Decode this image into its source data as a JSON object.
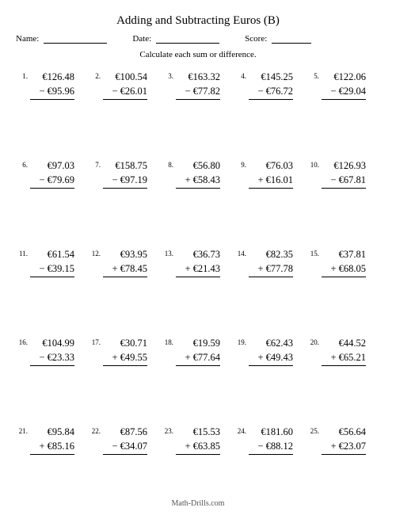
{
  "title": "Adding and Subtracting Euros (B)",
  "labels": {
    "name": "Name:",
    "date": "Date:",
    "score": "Score:"
  },
  "instruction": "Calculate each sum or difference.",
  "footer": "Math-Drills.com",
  "currency": "€",
  "problems": [
    {
      "n": "1.",
      "a": "126.48",
      "op": "−",
      "b": "95.96"
    },
    {
      "n": "2.",
      "a": "100.54",
      "op": "−",
      "b": "26.01"
    },
    {
      "n": "3.",
      "a": "163.32",
      "op": "−",
      "b": "77.82"
    },
    {
      "n": "4.",
      "a": "145.25",
      "op": "−",
      "b": "76.72"
    },
    {
      "n": "5.",
      "a": "122.06",
      "op": "−",
      "b": "29.04"
    },
    {
      "n": "6.",
      "a": "97.03",
      "op": "−",
      "b": "79.69"
    },
    {
      "n": "7.",
      "a": "158.75",
      "op": "−",
      "b": "97.19"
    },
    {
      "n": "8.",
      "a": "56.80",
      "op": "+",
      "b": "58.43"
    },
    {
      "n": "9.",
      "a": "76.03",
      "op": "+",
      "b": "16.01"
    },
    {
      "n": "10.",
      "a": "126.93",
      "op": "−",
      "b": "67.81"
    },
    {
      "n": "11.",
      "a": "61.54",
      "op": "−",
      "b": "39.15"
    },
    {
      "n": "12.",
      "a": "93.95",
      "op": "+",
      "b": "78.45"
    },
    {
      "n": "13.",
      "a": "36.73",
      "op": "+",
      "b": "21.43"
    },
    {
      "n": "14.",
      "a": "82.35",
      "op": "+",
      "b": "77.78"
    },
    {
      "n": "15.",
      "a": "37.81",
      "op": "+",
      "b": "68.05"
    },
    {
      "n": "16.",
      "a": "104.99",
      "op": "−",
      "b": "23.33"
    },
    {
      "n": "17.",
      "a": "30.71",
      "op": "+",
      "b": "49.55"
    },
    {
      "n": "18.",
      "a": "19.59",
      "op": "+",
      "b": "77.64"
    },
    {
      "n": "19.",
      "a": "62.43",
      "op": "+",
      "b": "49.43"
    },
    {
      "n": "20.",
      "a": "44.52",
      "op": "+",
      "b": "65.21"
    },
    {
      "n": "21.",
      "a": "95.84",
      "op": "+",
      "b": "85.16"
    },
    {
      "n": "22.",
      "a": "87.56",
      "op": "−",
      "b": "34.07"
    },
    {
      "n": "23.",
      "a": "15.53",
      "op": "+",
      "b": "63.85"
    },
    {
      "n": "24.",
      "a": "181.60",
      "op": "−",
      "b": "88.12"
    },
    {
      "n": "25.",
      "a": "56.64",
      "op": "+",
      "b": "23.07"
    }
  ]
}
